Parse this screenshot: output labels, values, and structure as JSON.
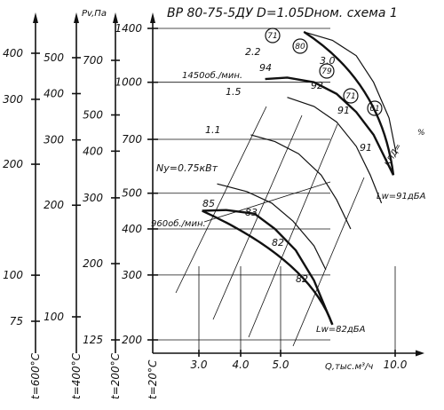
{
  "chart_data": {
    "type": "line",
    "title": "ВР 80-75-5ДУ D=1.05Dном. схема 1",
    "xlabel": "Q,тыс.м³/ч",
    "x_scale": "log",
    "y_scale": "log",
    "main_axis": {
      "ylim": [
        200,
        1400
      ],
      "ticks": [
        200,
        300,
        400,
        500,
        700,
        1000,
        1400
      ]
    },
    "temperature_axes": [
      {
        "name": "t=20°C",
        "ticks": []
      },
      {
        "name": "t=200°C",
        "ticks": [
          125,
          200,
          300,
          400,
          500,
          700
        ],
        "unit": "Pv,Па"
      },
      {
        "name": "t=400°C",
        "ticks": [
          100,
          200,
          300,
          400,
          500
        ]
      },
      {
        "name": "t=600°C",
        "ticks": [
          75,
          100,
          200,
          300,
          400
        ]
      }
    ],
    "x_ticks": [
      "3.0",
      "4.0",
      "5.0",
      "10.0"
    ],
    "speeds": [
      {
        "label": "1450об./мин.",
        "x": [
          4.3,
          5.0,
          6.0,
          7.0,
          8.0,
          9.0,
          10.3
        ],
        "y": [
          1020,
          1030,
          1000,
          930,
          830,
          720,
          560
        ]
      },
      {
        "label": "960об./мин.",
        "x": [
          2.8,
          3.3,
          4.0,
          4.6,
          5.3,
          6.0,
          6.8
        ],
        "y": [
          448,
          450,
          440,
          400,
          350,
          290,
          220
        ]
      }
    ],
    "power_lines": [
      {
        "label": "2.2",
        "x": [
          5.6,
          6.8,
          8.0,
          9.0,
          10.0,
          10.5
        ],
        "y": [
          1370,
          1300,
          1180,
          1000,
          800,
          640
        ]
      },
      {
        "label": "1.5",
        "x": [
          5.0,
          6.0,
          7.0,
          8.0,
          8.8,
          9.5
        ],
        "y": [
          910,
          860,
          780,
          670,
          560,
          470
        ]
      },
      {
        "label": "1.1",
        "x": [
          3.9,
          4.6,
          5.4,
          6.3,
          7.0,
          7.7
        ],
        "y": [
          720,
          690,
          640,
          560,
          480,
          400
        ]
      },
      {
        "label": "Ny=0.75кВт",
        "x": [
          3.1,
          3.8,
          4.5,
          5.2,
          6.0,
          6.5
        ],
        "y": [
          530,
          505,
          470,
          420,
          360,
          310
        ]
      }
    ],
    "efficiency_labels": [
      "85",
      "83",
      "82",
      "82",
      "94",
      "92",
      "91",
      "91"
    ],
    "efficiency_circles": [
      "71",
      "80",
      "79",
      "71",
      "61"
    ],
    "efficiency_caption": "КПД=",
    "efficiency_unit": "%",
    "noise": [
      "Lw=91дБА",
      "Lw=82дБА"
    ],
    "extra_labels": [
      "3.0"
    ]
  }
}
